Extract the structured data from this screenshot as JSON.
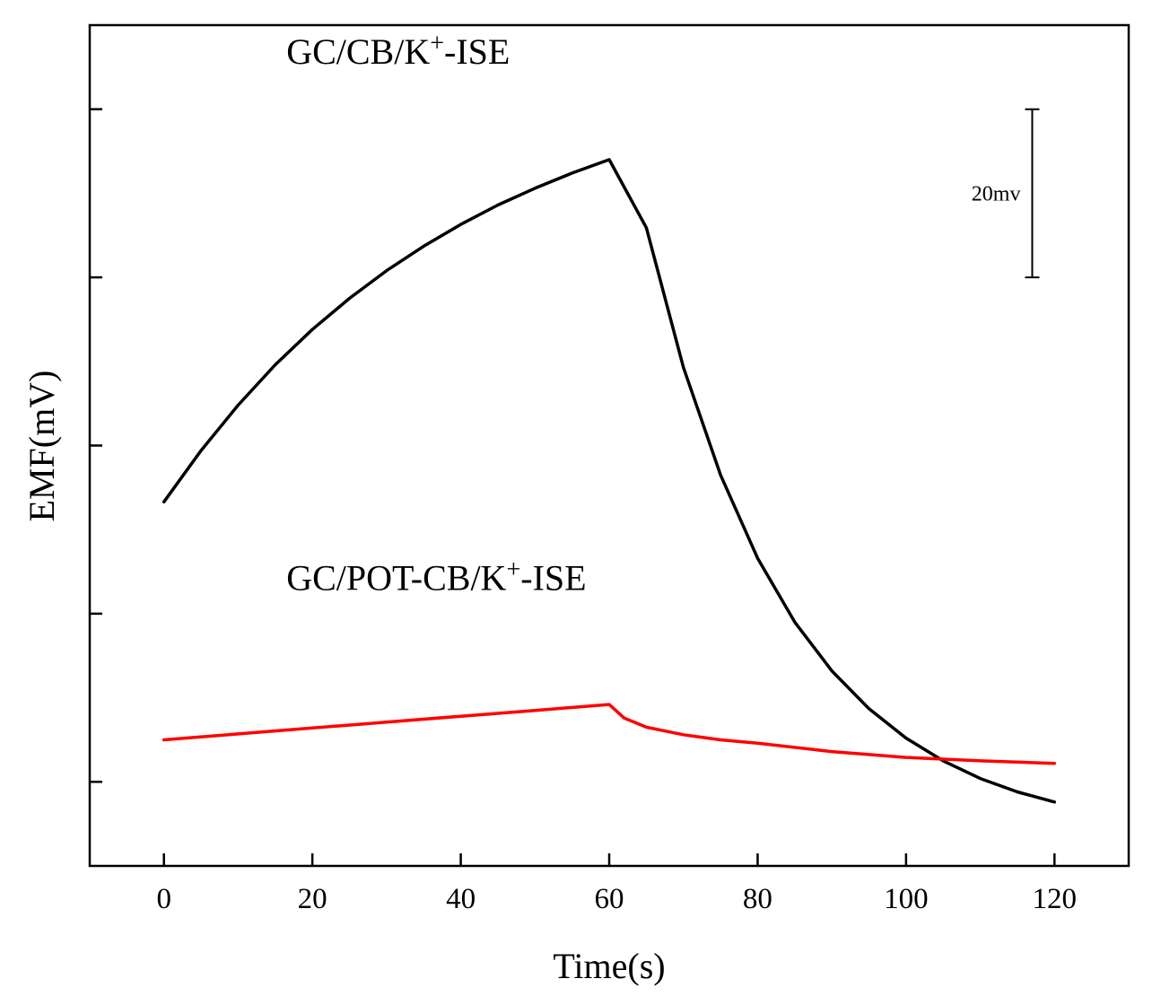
{
  "chart_data": {
    "type": "line",
    "title": "",
    "xlabel": "Time(s)",
    "ylabel": "EMF(mV)",
    "xlim": [
      -10,
      130
    ],
    "ylim": [
      0,
      100
    ],
    "xticks": [
      0,
      20,
      40,
      60,
      80,
      100,
      120
    ],
    "xtick_labels": [
      "0",
      "20",
      "40",
      "60",
      "80",
      "100",
      "120"
    ],
    "yticks": [
      10,
      30,
      50,
      70,
      90
    ],
    "grid": false,
    "legend": "none",
    "scale_bar": {
      "label": "20mv",
      "value": 20,
      "x": 117,
      "y_bottom": 70,
      "y_top": 90
    },
    "series": [
      {
        "name": "GC/CB/K+-ISE",
        "color": "#000000",
        "label": {
          "base": "GC/CB/K",
          "sup": "+",
          "suffix": "-ISE",
          "x": 16.5,
          "y": 95.4
        },
        "x": [
          0,
          5,
          10,
          15,
          20,
          25,
          30,
          35,
          40,
          45,
          50,
          55,
          60,
          65,
          70,
          75,
          80,
          85,
          90,
          95,
          100,
          105,
          110,
          115,
          120
        ],
        "y": [
          43.3,
          49.4,
          54.8,
          59.6,
          63.8,
          67.5,
          70.8,
          73.7,
          76.3,
          78.6,
          80.6,
          82.4,
          84.0,
          75.9,
          59.3,
          46.5,
          36.6,
          29.0,
          23.2,
          18.7,
          15.2,
          12.5,
          10.4,
          8.8,
          7.6
        ]
      },
      {
        "name": "GC/POT-CB/K+-ISE",
        "color": "#ff0000",
        "label": {
          "base": "GC/POT-CB/K",
          "sup": "+",
          "suffix": "-ISE",
          "x": 16.5,
          "y": 32.8
        },
        "x": [
          0,
          10,
          20,
          30,
          40,
          50,
          60,
          62,
          65,
          70,
          75,
          80,
          90,
          100,
          110,
          120
        ],
        "y": [
          15.0,
          15.7,
          16.4,
          17.1,
          17.8,
          18.5,
          19.2,
          17.6,
          16.5,
          15.6,
          15.0,
          14.6,
          13.6,
          12.9,
          12.5,
          12.2
        ]
      }
    ]
  }
}
